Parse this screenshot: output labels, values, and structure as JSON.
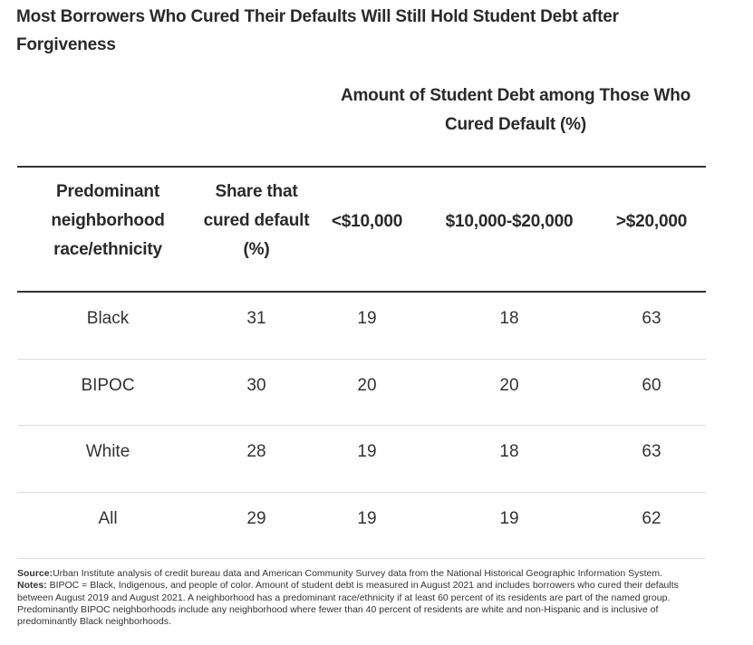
{
  "title": "Most Borrowers Who Cured Their Defaults Will Still Hold Student Debt after Forgiveness",
  "chart_data": {
    "type": "table",
    "title": "Most Borrowers Who Cured Their Defaults Will Still Hold Student Debt after Forgiveness",
    "group_header": "Amount of Student Debt among Those Who Cured Default (%)",
    "columns": [
      "Predominant neighborhood race/ethnicity",
      "Share that cured default (%)",
      "<$10,000",
      "$10,000-$20,000",
      ">$20,000"
    ],
    "rows": [
      {
        "label": "Black",
        "values": [
          "31",
          "19",
          "18",
          "63"
        ]
      },
      {
        "label": "BIPOC",
        "values": [
          "30",
          "20",
          "20",
          "60"
        ]
      },
      {
        "label": "White",
        "values": [
          "28",
          "19",
          "18",
          "63"
        ]
      },
      {
        "label": "All",
        "values": [
          "29",
          "19",
          "19",
          "62"
        ]
      }
    ]
  },
  "source_label": "Source:",
  "source_text": "Urban Institute analysis of credit bureau data and American Community Survey data from the National Historical Geographic Information System.",
  "notes_label": "Notes:",
  "notes_text": " BIPOC = Black, Indigenous, and people of color. Amount of student debt is measured in August 2021 and includes borrowers who cured their defaults between August 2019 and August 2021. A neighborhood has a predominant race/ethnicity if at least 60 percent of its residents are part of the named group. Predominantly BIPOC neighborhoods include any neighborhood where fewer than 40 percent of residents are white and non-Hispanic and is inclusive of predominantly Black neighborhoods."
}
